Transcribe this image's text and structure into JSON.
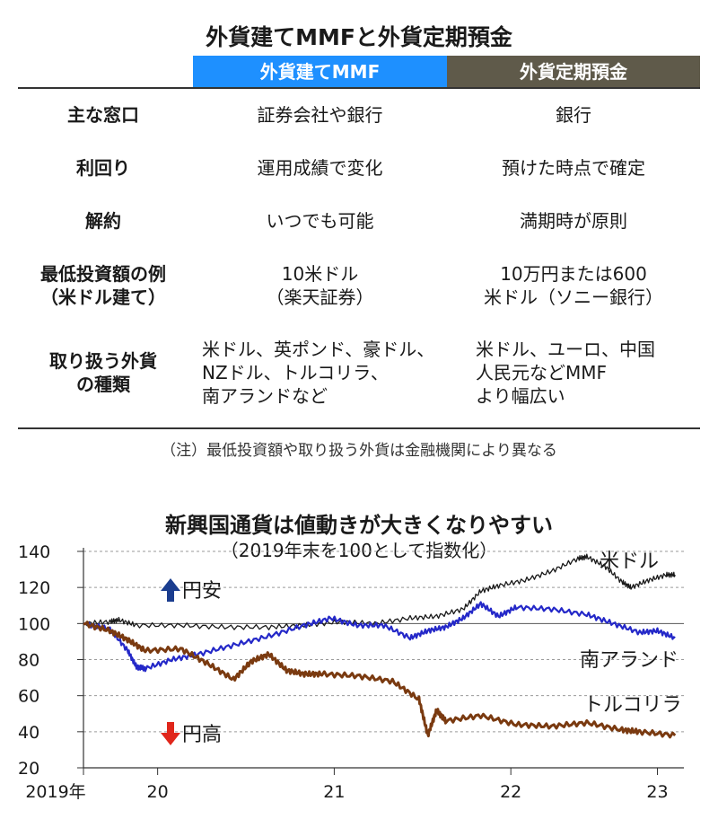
{
  "table": {
    "title": "外貨建てMMFと外貨定期預金",
    "columns": [
      "外貨建てMMF",
      "外貨定期預金"
    ],
    "header_colors": [
      "#1e90ff",
      "#5f5a4a"
    ],
    "rows": [
      {
        "label": [
          "主な窓口"
        ],
        "mmf": [
          "証券会社や銀行"
        ],
        "deposit": [
          "銀行"
        ]
      },
      {
        "label": [
          "利回り"
        ],
        "mmf": [
          "運用成績で変化"
        ],
        "deposit": [
          "預けた時点で確定"
        ]
      },
      {
        "label": [
          "解約"
        ],
        "mmf": [
          "いつでも可能"
        ],
        "deposit": [
          "満期時が原則"
        ]
      },
      {
        "label": [
          "最低投資額の例",
          "（米ドル建て）"
        ],
        "mmf": [
          "10米ドル",
          "（楽天証券）"
        ],
        "deposit": [
          "10万円または600",
          "米ドル（ソニー銀行）"
        ]
      },
      {
        "label": [
          "取り扱う外貨",
          "の種類"
        ],
        "mmf": [
          "米ドル、英ポンド、豪ドル、",
          "NZドル、トルコリラ、",
          "南アランドなど"
        ],
        "deposit": [
          "米ドル、ユーロ、中国",
          "人民元などMMF",
          "より幅広い"
        ]
      }
    ],
    "note": "（注）最低投資額や取り扱う外貨は金融機関により異なる"
  },
  "chart_data": {
    "type": "line",
    "title": "新興国通貨は値動きが大きくなりやすい",
    "subtitle": "（2019年末を100として指数化）",
    "xlabel": "",
    "ylabel": "",
    "ylim": [
      20,
      140
    ],
    "yticks": [
      20,
      40,
      60,
      80,
      100,
      120,
      140
    ],
    "xlim": [
      2019.95,
      2023.35
    ],
    "xticks": [
      {
        "value": 2019.95,
        "label": "2019年"
      },
      {
        "value": 2020.37,
        "label": "20"
      },
      {
        "value": 2021.37,
        "label": "21"
      },
      {
        "value": 2022.37,
        "label": "22"
      },
      {
        "value": 2023.2,
        "label": "23"
      }
    ],
    "grid": "dashed horizontal",
    "annotations": [
      {
        "text": "円安",
        "arrow": "up",
        "color": "#1a3d8f"
      },
      {
        "text": "円高",
        "arrow": "down",
        "color": "#e0261b"
      }
    ],
    "series": [
      {
        "name": "米ドル",
        "color": "#1a1a1a",
        "x": [
          2019.95,
          2020.1,
          2020.15,
          2020.25,
          2020.5,
          2020.75,
          2021.0,
          2021.2,
          2021.4,
          2021.6,
          2021.8,
          2021.95,
          2022.1,
          2022.2,
          2022.3,
          2022.45,
          2022.6,
          2022.75,
          2022.8,
          2022.9,
          2023.0,
          2023.05,
          2023.15,
          2023.25,
          2023.3
        ],
        "values": [
          100,
          101,
          102,
          99,
          99,
          98,
          98,
          99,
          101,
          100,
          103,
          104,
          108,
          118,
          121,
          124,
          129,
          136,
          137,
          132,
          123,
          120,
          124,
          127,
          127
        ]
      },
      {
        "name": "南アランド",
        "color": "#2428c8",
        "x": [
          2019.95,
          2020.1,
          2020.2,
          2020.25,
          2020.3,
          2020.45,
          2020.6,
          2020.8,
          2021.0,
          2021.2,
          2021.35,
          2021.5,
          2021.65,
          2021.8,
          2021.9,
          2022.0,
          2022.1,
          2022.2,
          2022.3,
          2022.4,
          2022.6,
          2022.8,
          2022.95,
          2023.1,
          2023.2,
          2023.3
        ],
        "values": [
          100,
          97,
          85,
          76,
          75,
          80,
          83,
          88,
          93,
          99,
          103,
          99,
          99,
          92,
          96,
          98,
          103,
          111,
          104,
          109,
          108,
          105,
          100,
          95,
          96,
          92
        ]
      },
      {
        "name": "トルコリラ",
        "color": "#7a3a10",
        "x": [
          2019.95,
          2020.1,
          2020.2,
          2020.3,
          2020.5,
          2020.65,
          2020.8,
          2020.9,
          2021.0,
          2021.1,
          2021.2,
          2021.3,
          2021.5,
          2021.7,
          2021.85,
          2021.9,
          2021.95,
          2022.0,
          2022.2,
          2022.4,
          2022.6,
          2022.8,
          2023.0,
          2023.1,
          2023.3
        ],
        "values": [
          100,
          96,
          91,
          85,
          86,
          78,
          69,
          79,
          83,
          74,
          72,
          72,
          71,
          68,
          58,
          38,
          52,
          46,
          49,
          44,
          43,
          45,
          41,
          40,
          38
        ]
      }
    ]
  }
}
